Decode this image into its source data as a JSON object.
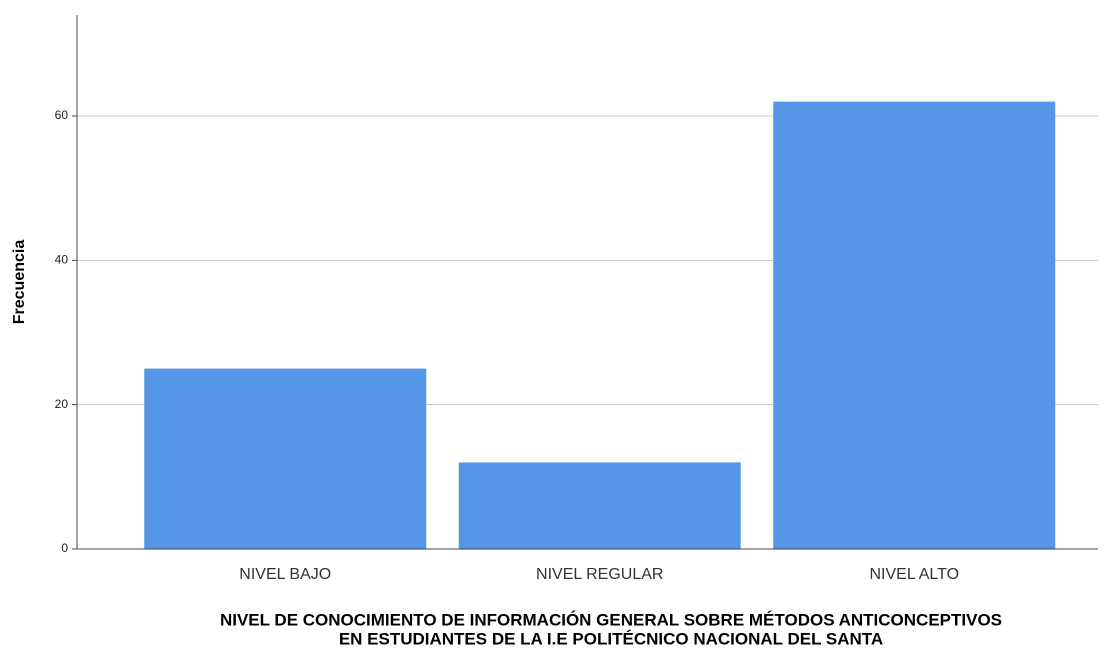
{
  "chart_data": {
    "type": "bar",
    "categories": [
      "NIVEL BAJO",
      "NIVEL REGULAR",
      "NIVEL ALTO"
    ],
    "values": [
      25,
      12,
      62
    ],
    "color": "#5597e6",
    "ylabel": "Frecuencia",
    "xlabel": [
      "NIVEL DE CONOCIMIENTO DE INFORMACIÓN GENERAL SOBRE MÉTODOS ANTICONCEPTIVOS",
      "EN ESTUDIANTES DE LA I.E POLITÉCNICO NACIONAL DEL SANTA"
    ],
    "ylim": [
      0,
      74
    ],
    "yticks": [
      0,
      20,
      40,
      60
    ],
    "grid": true
  }
}
